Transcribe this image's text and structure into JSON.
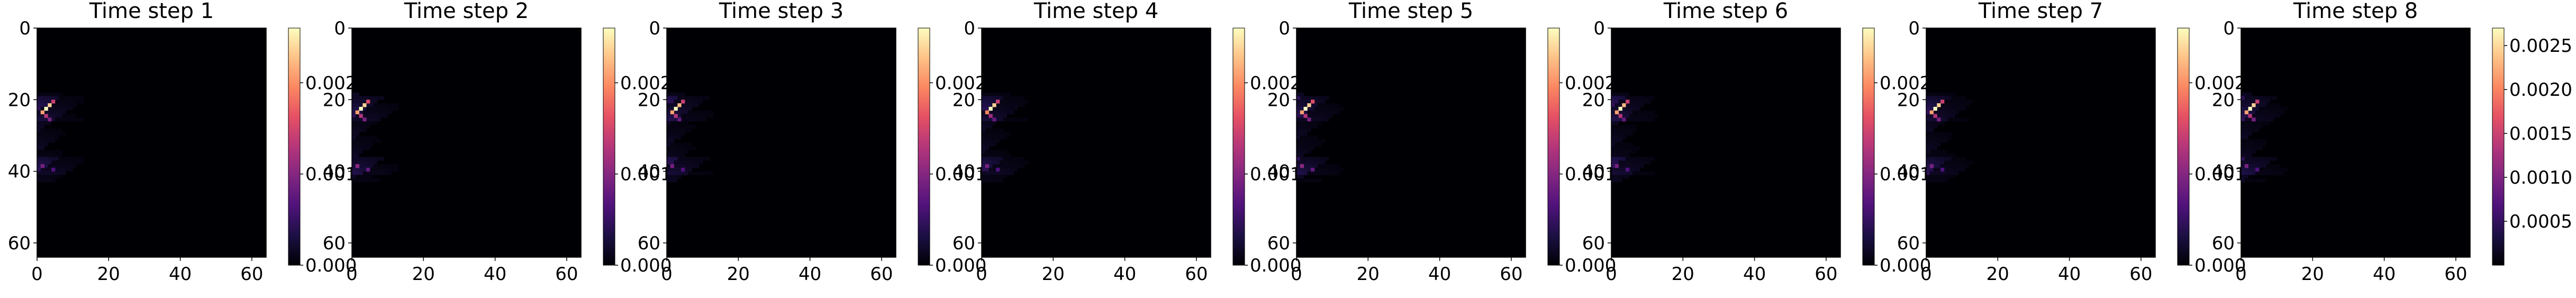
{
  "figure": {
    "colormap": "magma",
    "colormap_stops": [
      "#000004",
      "#1c1044",
      "#4f127b",
      "#812581",
      "#b5367a",
      "#e55064",
      "#fb8761",
      "#fec287",
      "#fcfdbf"
    ]
  },
  "chart_data": [
    {
      "type": "heatmap",
      "title": "Time step 1",
      "grid_size": [
        64,
        64
      ],
      "xlim": [
        0,
        64
      ],
      "ylim": [
        64,
        0
      ],
      "xticks": [
        0,
        20,
        40,
        60
      ],
      "yticks": [
        0,
        20,
        40,
        60
      ],
      "colorbar": {
        "min": 0.0,
        "max": 0.0026,
        "ticks": [
          0.0,
          0.001,
          0.002
        ],
        "tick_labels": [
          "0.000",
          "0.001",
          "0.002"
        ]
      },
      "hot_cells": [
        [
          2,
          22,
          1.0
        ],
        [
          3,
          21,
          0.9
        ],
        [
          1,
          23,
          0.8
        ],
        [
          4,
          20,
          0.55
        ],
        [
          2,
          24,
          0.5
        ],
        [
          3,
          25,
          0.35
        ],
        [
          1,
          38,
          0.35
        ],
        [
          4,
          39,
          0.25
        ]
      ]
    },
    {
      "type": "heatmap",
      "title": "Time step 2",
      "grid_size": [
        64,
        64
      ],
      "xlim": [
        0,
        64
      ],
      "ylim": [
        64,
        0
      ],
      "xticks": [
        0,
        20,
        40,
        60
      ],
      "yticks": [
        0,
        20,
        40,
        60
      ],
      "colorbar": {
        "min": 0.0,
        "max": 0.0026,
        "ticks": [
          0.0,
          0.001,
          0.002
        ],
        "tick_labels": [
          "0.000",
          "0.001",
          "0.002"
        ]
      },
      "hot_cells": [
        [
          2,
          22,
          1.0
        ],
        [
          3,
          21,
          0.9
        ],
        [
          1,
          23,
          0.8
        ],
        [
          4,
          20,
          0.6
        ],
        [
          2,
          24,
          0.5
        ],
        [
          3,
          25,
          0.35
        ],
        [
          1,
          38,
          0.4
        ],
        [
          4,
          39,
          0.3
        ]
      ]
    },
    {
      "type": "heatmap",
      "title": "Time step 3",
      "grid_size": [
        64,
        64
      ],
      "xlim": [
        0,
        64
      ],
      "ylim": [
        64,
        0
      ],
      "xticks": [
        0,
        20,
        40,
        60
      ],
      "yticks": [
        0,
        20,
        40,
        60
      ],
      "colorbar": {
        "min": 0.0,
        "max": 0.0026,
        "ticks": [
          0.0,
          0.001,
          0.002
        ],
        "tick_labels": [
          "0.000",
          "0.001",
          "0.002"
        ]
      },
      "hot_cells": [
        [
          2,
          22,
          1.0
        ],
        [
          3,
          21,
          0.85
        ],
        [
          1,
          23,
          0.8
        ],
        [
          4,
          20,
          0.55
        ],
        [
          2,
          24,
          0.5
        ],
        [
          3,
          25,
          0.3
        ],
        [
          1,
          38,
          0.35
        ],
        [
          4,
          39,
          0.25
        ]
      ]
    },
    {
      "type": "heatmap",
      "title": "Time step 4",
      "grid_size": [
        64,
        64
      ],
      "xlim": [
        0,
        64
      ],
      "ylim": [
        64,
        0
      ],
      "xticks": [
        0,
        20,
        40,
        60
      ],
      "yticks": [
        0,
        20,
        40,
        60
      ],
      "colorbar": {
        "min": 0.0,
        "max": 0.0026,
        "ticks": [
          0.0,
          0.001,
          0.002
        ],
        "tick_labels": [
          "0.000",
          "0.001",
          "0.002"
        ]
      },
      "hot_cells": [
        [
          2,
          22,
          1.0
        ],
        [
          3,
          21,
          0.9
        ],
        [
          1,
          23,
          0.75
        ],
        [
          4,
          20,
          0.55
        ],
        [
          2,
          24,
          0.45
        ],
        [
          3,
          25,
          0.3
        ],
        [
          1,
          38,
          0.35
        ],
        [
          4,
          39,
          0.25
        ]
      ]
    },
    {
      "type": "heatmap",
      "title": "Time step 5",
      "grid_size": [
        64,
        64
      ],
      "xlim": [
        0,
        64
      ],
      "ylim": [
        64,
        0
      ],
      "xticks": [
        0,
        20,
        40,
        60
      ],
      "yticks": [
        0,
        20,
        40,
        60
      ],
      "colorbar": {
        "min": 0.0,
        "max": 0.0026,
        "ticks": [
          0.0,
          0.001,
          0.002
        ],
        "tick_labels": [
          "0.000",
          "0.001",
          "0.002"
        ]
      },
      "hot_cells": [
        [
          2,
          22,
          1.0
        ],
        [
          3,
          21,
          0.9
        ],
        [
          1,
          23,
          0.8
        ],
        [
          4,
          20,
          0.6
        ],
        [
          2,
          24,
          0.5
        ],
        [
          3,
          25,
          0.35
        ],
        [
          1,
          38,
          0.4
        ],
        [
          4,
          39,
          0.3
        ]
      ]
    },
    {
      "type": "heatmap",
      "title": "Time step 6",
      "grid_size": [
        64,
        64
      ],
      "xlim": [
        0,
        64
      ],
      "ylim": [
        64,
        0
      ],
      "xticks": [
        0,
        20,
        40,
        60
      ],
      "yticks": [
        0,
        20,
        40,
        60
      ],
      "colorbar": {
        "min": 0.0,
        "max": 0.0026,
        "ticks": [
          0.0,
          0.001,
          0.002
        ],
        "tick_labels": [
          "0.000",
          "0.001",
          "0.002"
        ]
      },
      "hot_cells": [
        [
          2,
          22,
          1.0
        ],
        [
          3,
          21,
          0.85
        ],
        [
          1,
          23,
          0.8
        ],
        [
          4,
          20,
          0.55
        ],
        [
          2,
          24,
          0.5
        ],
        [
          3,
          25,
          0.3
        ],
        [
          1,
          38,
          0.35
        ],
        [
          4,
          39,
          0.25
        ]
      ]
    },
    {
      "type": "heatmap",
      "title": "Time step 7",
      "grid_size": [
        64,
        64
      ],
      "xlim": [
        0,
        64
      ],
      "ylim": [
        64,
        0
      ],
      "xticks": [
        0,
        20,
        40,
        60
      ],
      "yticks": [
        0,
        20,
        40,
        60
      ],
      "colorbar": {
        "min": 0.0,
        "max": 0.0026,
        "ticks": [
          0.0,
          0.001,
          0.002
        ],
        "tick_labels": [
          "0.000",
          "0.001",
          "0.002"
        ]
      },
      "hot_cells": [
        [
          2,
          22,
          1.0
        ],
        [
          3,
          21,
          0.9
        ],
        [
          1,
          23,
          0.8
        ],
        [
          4,
          20,
          0.55
        ],
        [
          2,
          24,
          0.5
        ],
        [
          3,
          25,
          0.35
        ],
        [
          1,
          38,
          0.35
        ],
        [
          4,
          39,
          0.25
        ]
      ]
    },
    {
      "type": "heatmap",
      "title": "Time step 8",
      "grid_size": [
        64,
        64
      ],
      "xlim": [
        0,
        64
      ],
      "ylim": [
        64,
        0
      ],
      "xticks": [
        0,
        20,
        40,
        60
      ],
      "yticks": [
        0,
        20,
        40,
        60
      ],
      "colorbar": {
        "min": 0.0,
        "max": 0.0027,
        "ticks": [
          0.0005,
          0.001,
          0.0015,
          0.002,
          0.0025
        ],
        "tick_labels": [
          "0.0005",
          "0.0010",
          "0.0015",
          "0.0020",
          "0.0025"
        ]
      },
      "hot_cells": [
        [
          2,
          22,
          1.0
        ],
        [
          3,
          21,
          0.9
        ],
        [
          1,
          23,
          0.8
        ],
        [
          4,
          20,
          0.55
        ],
        [
          2,
          24,
          0.5
        ],
        [
          3,
          25,
          0.35
        ],
        [
          1,
          38,
          0.35
        ],
        [
          4,
          39,
          0.25
        ]
      ]
    }
  ]
}
